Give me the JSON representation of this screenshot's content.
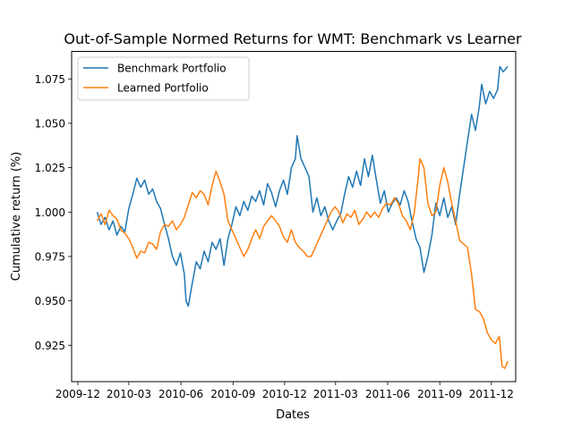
{
  "chart_data": {
    "type": "line",
    "title": "Out-of-Sample Normed Returns for WMT: Benchmark vs Learner",
    "xlabel": "Dates",
    "ylabel": "Cumulative return (%)",
    "x_range": [
      "2009-11-20",
      "2012-01-13"
    ],
    "ylim": [
      0.9045,
      1.0905
    ],
    "x_ticks": [
      {
        "date": "2009-12-01",
        "label": "2009-12"
      },
      {
        "date": "2010-03-01",
        "label": "2010-03"
      },
      {
        "date": "2010-06-01",
        "label": "2010-06"
      },
      {
        "date": "2010-09-01",
        "label": "2010-09"
      },
      {
        "date": "2010-12-01",
        "label": "2010-12"
      },
      {
        "date": "2011-03-01",
        "label": "2011-03"
      },
      {
        "date": "2011-06-01",
        "label": "2011-06"
      },
      {
        "date": "2011-09-01",
        "label": "2011-09"
      },
      {
        "date": "2011-12-01",
        "label": "2011-12"
      }
    ],
    "y_ticks": [
      {
        "value": 0.925,
        "label": "0.925"
      },
      {
        "value": 0.95,
        "label": "0.950"
      },
      {
        "value": 0.975,
        "label": "0.975"
      },
      {
        "value": 1.0,
        "label": "1.000"
      },
      {
        "value": 1.025,
        "label": "1.025"
      },
      {
        "value": 1.05,
        "label": "1.050"
      },
      {
        "value": 1.075,
        "label": "1.075"
      }
    ],
    "grid": false,
    "legend_position": "upper-left",
    "series": [
      {
        "name": "Benchmark Portfolio",
        "color": "#1f77b4",
        "points": [
          [
            "2010-01-04",
            1.0
          ],
          [
            "2010-01-11",
            0.993
          ],
          [
            "2010-01-18",
            0.997
          ],
          [
            "2010-01-25",
            0.99
          ],
          [
            "2010-02-01",
            0.995
          ],
          [
            "2010-02-08",
            0.987
          ],
          [
            "2010-02-15",
            0.992
          ],
          [
            "2010-02-22",
            0.989
          ],
          [
            "2010-03-01",
            1.002
          ],
          [
            "2010-03-08",
            1.01
          ],
          [
            "2010-03-15",
            1.019
          ],
          [
            "2010-03-22",
            1.014
          ],
          [
            "2010-03-29",
            1.018
          ],
          [
            "2010-04-05",
            1.01
          ],
          [
            "2010-04-12",
            1.013
          ],
          [
            "2010-04-19",
            1.006
          ],
          [
            "2010-04-26",
            1.002
          ],
          [
            "2010-05-03",
            0.993
          ],
          [
            "2010-05-10",
            0.985
          ],
          [
            "2010-05-17",
            0.975
          ],
          [
            "2010-05-24",
            0.97
          ],
          [
            "2010-05-31",
            0.977
          ],
          [
            "2010-06-07",
            0.965
          ],
          [
            "2010-06-10",
            0.95
          ],
          [
            "2010-06-14",
            0.947
          ],
          [
            "2010-06-21",
            0.96
          ],
          [
            "2010-06-28",
            0.972
          ],
          [
            "2010-07-05",
            0.968
          ],
          [
            "2010-07-12",
            0.978
          ],
          [
            "2010-07-19",
            0.972
          ],
          [
            "2010-07-26",
            0.983
          ],
          [
            "2010-08-02",
            0.979
          ],
          [
            "2010-08-09",
            0.985
          ],
          [
            "2010-08-16",
            0.97
          ],
          [
            "2010-08-23",
            0.985
          ],
          [
            "2010-08-30",
            0.993
          ],
          [
            "2010-09-06",
            1.003
          ],
          [
            "2010-09-13",
            0.998
          ],
          [
            "2010-09-20",
            1.006
          ],
          [
            "2010-09-27",
            1.001
          ],
          [
            "2010-10-04",
            1.009
          ],
          [
            "2010-10-11",
            1.006
          ],
          [
            "2010-10-18",
            1.012
          ],
          [
            "2010-10-25",
            1.004
          ],
          [
            "2010-11-01",
            1.016
          ],
          [
            "2010-11-08",
            1.011
          ],
          [
            "2010-11-15",
            1.003
          ],
          [
            "2010-11-22",
            1.012
          ],
          [
            "2010-11-29",
            1.018
          ],
          [
            "2010-12-06",
            1.01
          ],
          [
            "2010-12-13",
            1.025
          ],
          [
            "2010-12-20",
            1.03
          ],
          [
            "2010-12-23",
            1.043
          ],
          [
            "2010-12-30",
            1.03
          ],
          [
            "2011-01-06",
            1.025
          ],
          [
            "2011-01-13",
            1.02
          ],
          [
            "2011-01-20",
            1.0
          ],
          [
            "2011-01-27",
            1.008
          ],
          [
            "2011-02-03",
            0.998
          ],
          [
            "2011-02-10",
            1.003
          ],
          [
            "2011-02-17",
            0.995
          ],
          [
            "2011-02-24",
            0.99
          ],
          [
            "2011-03-03",
            0.995
          ],
          [
            "2011-03-10",
            0.999
          ],
          [
            "2011-03-17",
            1.01
          ],
          [
            "2011-03-24",
            1.02
          ],
          [
            "2011-03-31",
            1.014
          ],
          [
            "2011-04-07",
            1.023
          ],
          [
            "2011-04-14",
            1.015
          ],
          [
            "2011-04-21",
            1.03
          ],
          [
            "2011-04-28",
            1.02
          ],
          [
            "2011-05-05",
            1.032
          ],
          [
            "2011-05-12",
            1.018
          ],
          [
            "2011-05-19",
            1.005
          ],
          [
            "2011-05-26",
            1.012
          ],
          [
            "2011-06-02",
            1.0
          ],
          [
            "2011-06-09",
            1.005
          ],
          [
            "2011-06-16",
            1.008
          ],
          [
            "2011-06-23",
            1.004
          ],
          [
            "2011-06-30",
            1.012
          ],
          [
            "2011-07-07",
            1.006
          ],
          [
            "2011-07-14",
            0.995
          ],
          [
            "2011-07-21",
            0.985
          ],
          [
            "2011-07-28",
            0.98
          ],
          [
            "2011-08-04",
            0.966
          ],
          [
            "2011-08-11",
            0.975
          ],
          [
            "2011-08-18",
            0.987
          ],
          [
            "2011-08-25",
            1.005
          ],
          [
            "2011-09-01",
            0.998
          ],
          [
            "2011-09-08",
            1.008
          ],
          [
            "2011-09-15",
            0.997
          ],
          [
            "2011-09-22",
            1.003
          ],
          [
            "2011-09-29",
            0.993
          ],
          [
            "2011-10-06",
            1.01
          ],
          [
            "2011-10-13",
            1.025
          ],
          [
            "2011-10-20",
            1.04
          ],
          [
            "2011-10-27",
            1.055
          ],
          [
            "2011-11-03",
            1.046
          ],
          [
            "2011-11-10",
            1.06
          ],
          [
            "2011-11-14",
            1.072
          ],
          [
            "2011-11-21",
            1.061
          ],
          [
            "2011-11-28",
            1.068
          ],
          [
            "2011-12-05",
            1.064
          ],
          [
            "2011-12-12",
            1.069
          ],
          [
            "2011-12-16",
            1.082
          ],
          [
            "2011-12-22",
            1.079
          ],
          [
            "2011-12-30",
            1.082
          ]
        ]
      },
      {
        "name": "Learned Portfolio",
        "color": "#ff7f0e",
        "points": [
          [
            "2010-01-04",
            0.995
          ],
          [
            "2010-01-11",
            0.999
          ],
          [
            "2010-01-18",
            0.993
          ],
          [
            "2010-01-25",
            1.001
          ],
          [
            "2010-02-01",
            0.998
          ],
          [
            "2010-02-08",
            0.996
          ],
          [
            "2010-02-15",
            0.99
          ],
          [
            "2010-02-22",
            0.988
          ],
          [
            "2010-03-01",
            0.985
          ],
          [
            "2010-03-08",
            0.98
          ],
          [
            "2010-03-15",
            0.974
          ],
          [
            "2010-03-22",
            0.978
          ],
          [
            "2010-03-29",
            0.977
          ],
          [
            "2010-04-05",
            0.983
          ],
          [
            "2010-04-12",
            0.982
          ],
          [
            "2010-04-19",
            0.979
          ],
          [
            "2010-04-26",
            0.989
          ],
          [
            "2010-05-03",
            0.993
          ],
          [
            "2010-05-10",
            0.992
          ],
          [
            "2010-05-17",
            0.995
          ],
          [
            "2010-05-24",
            0.99
          ],
          [
            "2010-05-31",
            0.993
          ],
          [
            "2010-06-07",
            0.997
          ],
          [
            "2010-06-14",
            1.004
          ],
          [
            "2010-06-21",
            1.011
          ],
          [
            "2010-06-28",
            1.008
          ],
          [
            "2010-07-05",
            1.012
          ],
          [
            "2010-07-12",
            1.01
          ],
          [
            "2010-07-19",
            1.004
          ],
          [
            "2010-07-26",
            1.015
          ],
          [
            "2010-08-02",
            1.023
          ],
          [
            "2010-08-09",
            1.017
          ],
          [
            "2010-08-16",
            1.01
          ],
          [
            "2010-08-23",
            0.995
          ],
          [
            "2010-08-30",
            0.99
          ],
          [
            "2010-09-06",
            0.985
          ],
          [
            "2010-09-13",
            0.98
          ],
          [
            "2010-09-20",
            0.975
          ],
          [
            "2010-09-27",
            0.979
          ],
          [
            "2010-10-04",
            0.985
          ],
          [
            "2010-10-11",
            0.99
          ],
          [
            "2010-10-18",
            0.985
          ],
          [
            "2010-10-25",
            0.992
          ],
          [
            "2010-11-01",
            0.995
          ],
          [
            "2010-11-08",
            0.998
          ],
          [
            "2010-11-15",
            0.995
          ],
          [
            "2010-11-22",
            0.992
          ],
          [
            "2010-11-29",
            0.986
          ],
          [
            "2010-12-06",
            0.983
          ],
          [
            "2010-12-13",
            0.99
          ],
          [
            "2010-12-20",
            0.983
          ],
          [
            "2010-12-27",
            0.98
          ],
          [
            "2011-01-03",
            0.978
          ],
          [
            "2011-01-10",
            0.975
          ],
          [
            "2011-01-17",
            0.975
          ],
          [
            "2011-01-24",
            0.98
          ],
          [
            "2011-01-31",
            0.985
          ],
          [
            "2011-02-07",
            0.99
          ],
          [
            "2011-02-14",
            0.995
          ],
          [
            "2011-02-21",
            1.0
          ],
          [
            "2011-02-28",
            1.003
          ],
          [
            "2011-03-07",
            1.0
          ],
          [
            "2011-03-14",
            0.994
          ],
          [
            "2011-03-21",
            0.999
          ],
          [
            "2011-03-28",
            0.997
          ],
          [
            "2011-04-04",
            1.001
          ],
          [
            "2011-04-11",
            0.993
          ],
          [
            "2011-04-18",
            0.996
          ],
          [
            "2011-04-25",
            1.0
          ],
          [
            "2011-05-02",
            0.997
          ],
          [
            "2011-05-09",
            1.0
          ],
          [
            "2011-05-16",
            0.997
          ],
          [
            "2011-05-23",
            1.002
          ],
          [
            "2011-05-30",
            1.005
          ],
          [
            "2011-06-06",
            1.004
          ],
          [
            "2011-06-13",
            1.008
          ],
          [
            "2011-06-20",
            1.005
          ],
          [
            "2011-06-27",
            0.998
          ],
          [
            "2011-07-04",
            0.995
          ],
          [
            "2011-07-11",
            0.99
          ],
          [
            "2011-07-18",
            1.0
          ],
          [
            "2011-07-25",
            1.02
          ],
          [
            "2011-07-28",
            1.03
          ],
          [
            "2011-08-04",
            1.025
          ],
          [
            "2011-08-11",
            1.005
          ],
          [
            "2011-08-18",
            0.998
          ],
          [
            "2011-08-25",
            1.0
          ],
          [
            "2011-09-01",
            1.015
          ],
          [
            "2011-09-08",
            1.025
          ],
          [
            "2011-09-15",
            1.017
          ],
          [
            "2011-09-22",
            1.005
          ],
          [
            "2011-09-29",
            0.995
          ],
          [
            "2011-10-06",
            0.984
          ],
          [
            "2011-10-13",
            0.982
          ],
          [
            "2011-10-20",
            0.98
          ],
          [
            "2011-10-27",
            0.965
          ],
          [
            "2011-11-03",
            0.945
          ],
          [
            "2011-11-10",
            0.944
          ],
          [
            "2011-11-17",
            0.94
          ],
          [
            "2011-11-24",
            0.932
          ],
          [
            "2011-12-01",
            0.928
          ],
          [
            "2011-12-08",
            0.926
          ],
          [
            "2011-12-15",
            0.93
          ],
          [
            "2011-12-20",
            0.913
          ],
          [
            "2011-12-25",
            0.912
          ],
          [
            "2011-12-30",
            0.916
          ]
        ]
      }
    ]
  }
}
